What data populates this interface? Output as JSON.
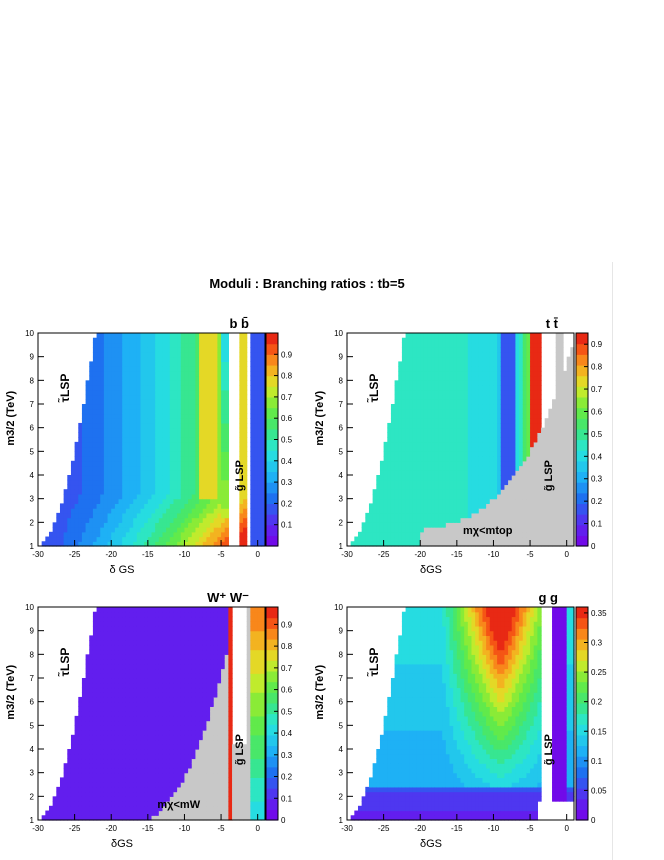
{
  "figure": {
    "title": "Moduli : Branching ratios : tb=5"
  },
  "chart_data": [
    {
      "type": "heatmap",
      "label": "b b̄",
      "xlabel": "δ GS",
      "ylabel": "m3/2 (TeV)",
      "xlim": [
        -30,
        1
      ],
      "ylim": [
        1,
        10
      ],
      "x_ticks": [
        "-30",
        "-25",
        "-20",
        "-15",
        "-10",
        "-5",
        "0"
      ],
      "y_ticks": [
        "1",
        "2",
        "3",
        "4",
        "5",
        "6",
        "7",
        "8",
        "9",
        "10"
      ],
      "colorbar_ticks": [
        "0.1",
        "0.2",
        "0.3",
        "0.4",
        "0.5",
        "0.6",
        "0.7",
        "0.8",
        "0.9"
      ],
      "colorbar_range": [
        0,
        1
      ],
      "annotations": [
        "τ̃LSP",
        "g̃ LSP"
      ]
    },
    {
      "type": "heatmap",
      "label": "t t̄",
      "xlabel": "δGS",
      "ylabel": "m3/2 (TeV)",
      "xlim": [
        -30,
        1
      ],
      "ylim": [
        1,
        10
      ],
      "x_ticks": [
        "-30",
        "-25",
        "-20",
        "-15",
        "-10",
        "-5",
        "0"
      ],
      "y_ticks": [
        "1",
        "2",
        "3",
        "4",
        "5",
        "6",
        "7",
        "8",
        "9",
        "10"
      ],
      "colorbar_ticks": [
        "0",
        "0.1",
        "0.2",
        "0.3",
        "0.4",
        "0.5",
        "0.6",
        "0.7",
        "0.8",
        "0.9"
      ],
      "colorbar_range": [
        0,
        0.95
      ],
      "annotations": [
        "τ̃LSP",
        "g̃ LSP",
        "mχ<mtop"
      ]
    },
    {
      "type": "heatmap",
      "label": "W⁺ W⁻",
      "xlabel": "δGS",
      "ylabel": "m3/2 (TeV)",
      "xlim": [
        -30,
        1
      ],
      "ylim": [
        1,
        10
      ],
      "x_ticks": [
        "-30",
        "-25",
        "-20",
        "-15",
        "-10",
        "-5",
        "0"
      ],
      "y_ticks": [
        "1",
        "2",
        "3",
        "4",
        "5",
        "6",
        "7",
        "8",
        "9",
        "10"
      ],
      "colorbar_ticks": [
        "0",
        "0.1",
        "0.2",
        "0.3",
        "0.4",
        "0.5",
        "0.6",
        "0.7",
        "0.8",
        "0.9"
      ],
      "colorbar_range": [
        0,
        0.98
      ],
      "annotations": [
        "τ̃LSP",
        "g̃ LSP",
        "mχ<mW"
      ]
    },
    {
      "type": "heatmap",
      "label": "g g",
      "xlabel": "δGS",
      "ylabel": "m3/2 (TeV)",
      "xlim": [
        -30,
        1
      ],
      "ylim": [
        1,
        10
      ],
      "x_ticks": [
        "-30",
        "-25",
        "-20",
        "-15",
        "-10",
        "-5",
        "0"
      ],
      "y_ticks": [
        "1",
        "2",
        "3",
        "4",
        "5",
        "6",
        "7",
        "8",
        "9",
        "10"
      ],
      "colorbar_ticks": [
        "0",
        "0.05",
        "0.1",
        "0.15",
        "0.2",
        "0.25",
        "0.3",
        "0.35"
      ],
      "colorbar_range": [
        0,
        0.36
      ],
      "annotations": [
        "τ̃LSP",
        "g̃ LSP"
      ]
    }
  ]
}
